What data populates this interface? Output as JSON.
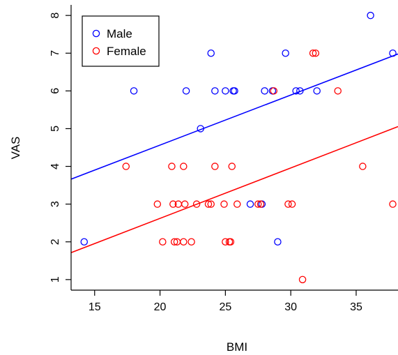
{
  "chart_data": {
    "type": "scatter",
    "xlabel": "BMI",
    "ylabel": "VAS",
    "xlim": [
      13.2,
      38.2
    ],
    "ylim": [
      0.72,
      8.28
    ],
    "x_ticks": [
      15,
      20,
      25,
      30,
      35
    ],
    "y_ticks": [
      1,
      2,
      3,
      4,
      5,
      6,
      7,
      8
    ],
    "grid": false,
    "legend_position": "top-left",
    "series": [
      {
        "name": "Male",
        "color": "#0000ff",
        "points": [
          [
            14.2,
            2
          ],
          [
            18.0,
            6
          ],
          [
            22.0,
            6
          ],
          [
            23.1,
            5
          ],
          [
            23.9,
            7
          ],
          [
            24.2,
            6
          ],
          [
            25.0,
            6
          ],
          [
            25.6,
            6
          ],
          [
            25.7,
            6
          ],
          [
            26.9,
            3
          ],
          [
            27.8,
            3
          ],
          [
            28.0,
            6
          ],
          [
            28.6,
            6
          ],
          [
            29.0,
            2
          ],
          [
            29.6,
            7
          ],
          [
            30.4,
            6
          ],
          [
            30.7,
            6
          ],
          [
            32.0,
            6
          ],
          [
            36.1,
            8
          ],
          [
            37.8,
            7
          ]
        ],
        "fit_line": {
          "intercept": 1.91,
          "slope": 0.1327
        }
      },
      {
        "name": "Female",
        "color": "#ff0000",
        "points": [
          [
            17.4,
            4
          ],
          [
            19.8,
            3
          ],
          [
            20.2,
            2
          ],
          [
            20.9,
            4
          ],
          [
            21.0,
            3
          ],
          [
            21.1,
            2
          ],
          [
            21.3,
            2
          ],
          [
            21.4,
            3
          ],
          [
            21.8,
            4
          ],
          [
            21.8,
            2
          ],
          [
            21.9,
            3
          ],
          [
            22.4,
            2
          ],
          [
            22.8,
            3
          ],
          [
            23.7,
            3
          ],
          [
            23.9,
            3
          ],
          [
            24.2,
            4
          ],
          [
            24.9,
            3
          ],
          [
            25.0,
            2
          ],
          [
            25.3,
            2
          ],
          [
            25.4,
            2
          ],
          [
            25.5,
            4
          ],
          [
            25.9,
            3
          ],
          [
            27.5,
            3
          ],
          [
            27.7,
            3
          ],
          [
            28.7,
            6
          ],
          [
            29.8,
            3
          ],
          [
            30.1,
            3
          ],
          [
            30.9,
            1
          ],
          [
            31.7,
            7
          ],
          [
            31.9,
            7
          ],
          [
            33.6,
            6
          ],
          [
            35.5,
            4
          ],
          [
            37.8,
            3
          ]
        ],
        "fit_line": {
          "intercept": -0.05,
          "slope": 0.1336
        }
      }
    ]
  }
}
